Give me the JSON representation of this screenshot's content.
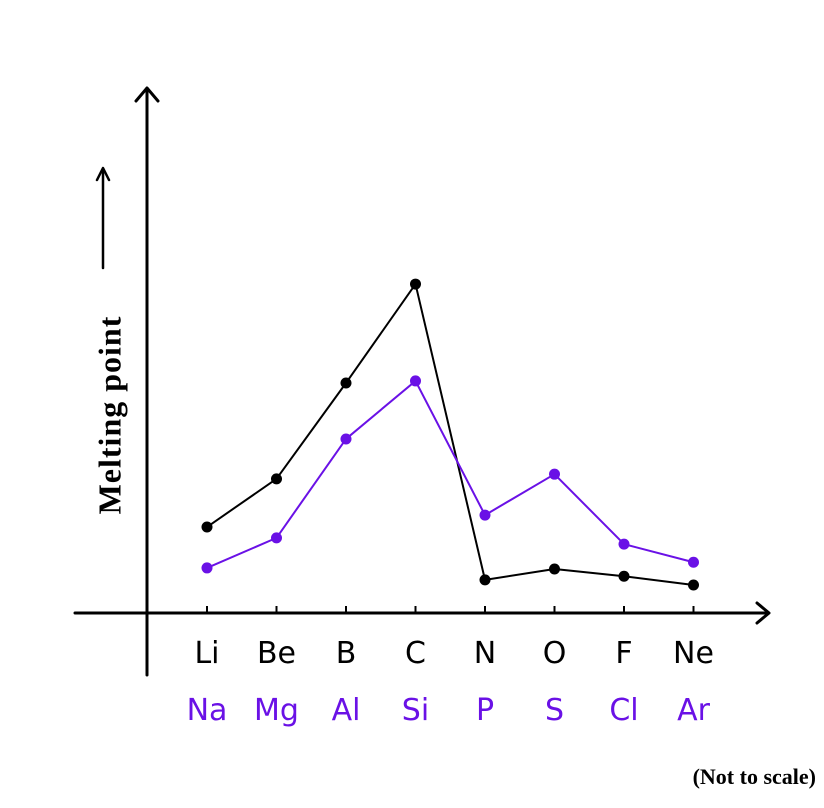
{
  "chart_data": {
    "type": "line",
    "y_label": "Melting point",
    "note": "(Not to scale)",
    "ylim": [
      0,
      100
    ],
    "series": [
      {
        "color": "#000000",
        "labels": [
          "Li",
          "Be",
          "B",
          "C",
          "N",
          "O",
          "F",
          "Ne"
        ],
        "values": [
          16.6,
          25.9,
          44.4,
          63.5,
          6.4,
          8.5,
          7.1,
          5.4
        ]
      },
      {
        "color": "#6a11e6",
        "labels": [
          "Na",
          "Mg",
          "Al",
          "Si",
          "P",
          "S",
          "Cl",
          "Ar"
        ],
        "values": [
          8.7,
          14.5,
          33.6,
          44.8,
          18.9,
          26.8,
          13.3,
          9.8
        ]
      }
    ]
  }
}
